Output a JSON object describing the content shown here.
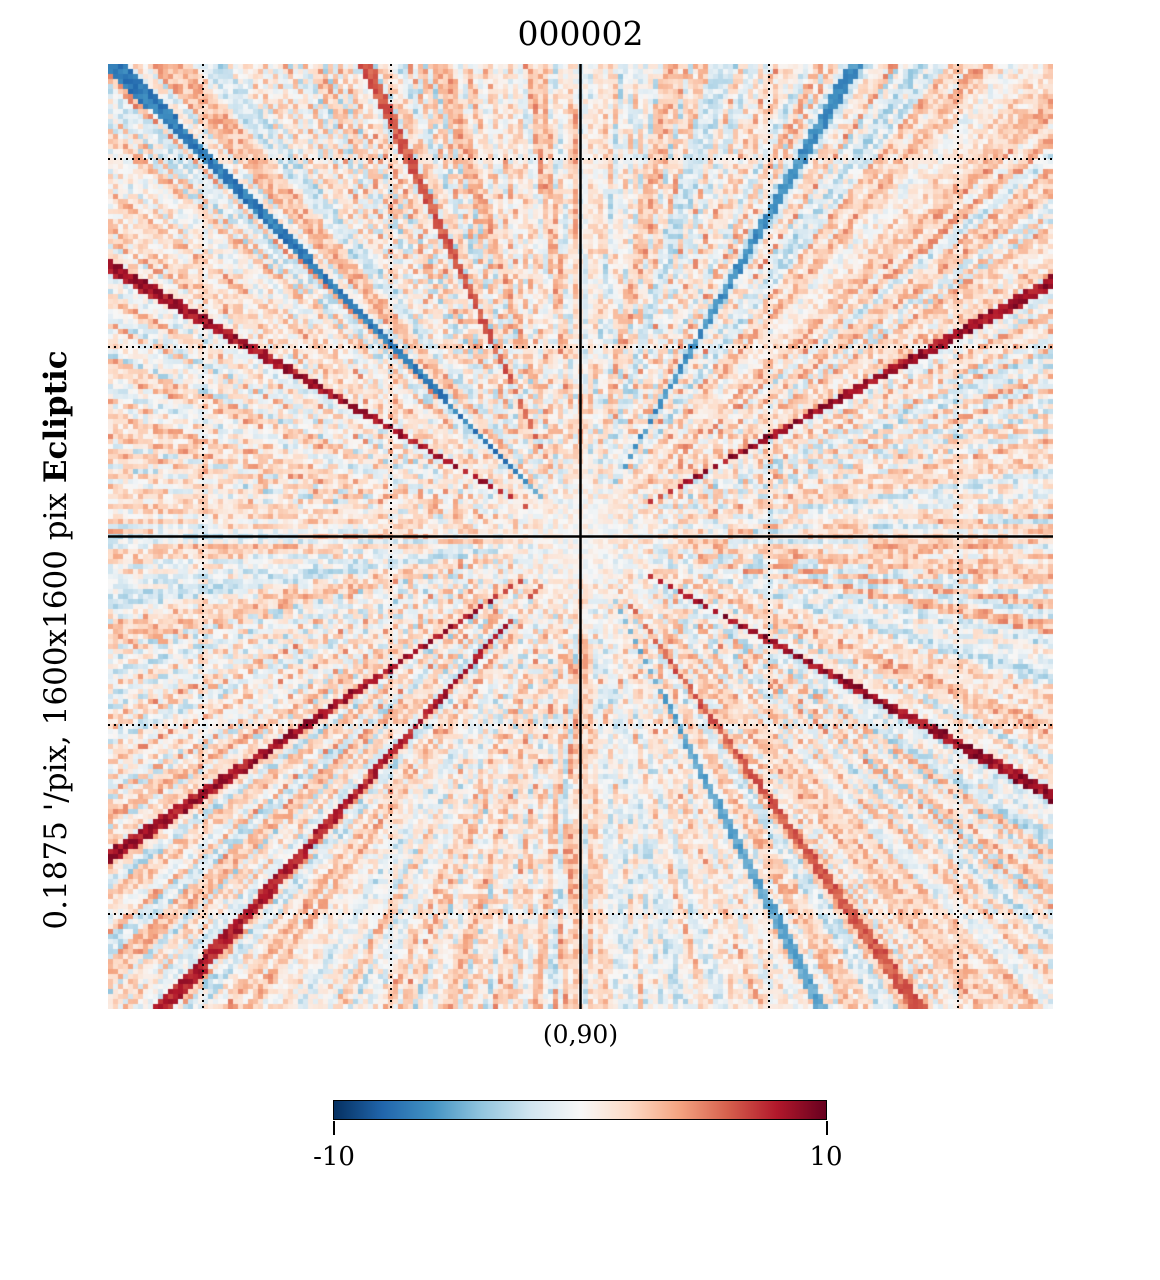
{
  "title": "000002",
  "y_axis": {
    "coord_label": "Ecliptic",
    "resolution_label": "0.1875 '/pix,  1600x1600 pix"
  },
  "center_label": "(0,90)",
  "colorbar": {
    "min_label": "-10",
    "max_label": "10",
    "colormap": [
      "#053061",
      "#2166ac",
      "#4393c3",
      "#92c5de",
      "#d1e5f0",
      "#f7f7f7",
      "#fddbc7",
      "#f4a582",
      "#d6604d",
      "#b2182b",
      "#67001f"
    ]
  },
  "chart_data": {
    "type": "heatmap",
    "title": "000002",
    "projection": "gnomonic",
    "coordinate_system": "Ecliptic",
    "resolution_arcmin_per_pix": 0.1875,
    "size_pix": [
      1600,
      1600
    ],
    "center_lonlat": [
      0,
      90
    ],
    "colorbar_range": [
      -10,
      10
    ],
    "graticule": "dotted, 5x5 grid with solid central meridian and parallel"
  }
}
